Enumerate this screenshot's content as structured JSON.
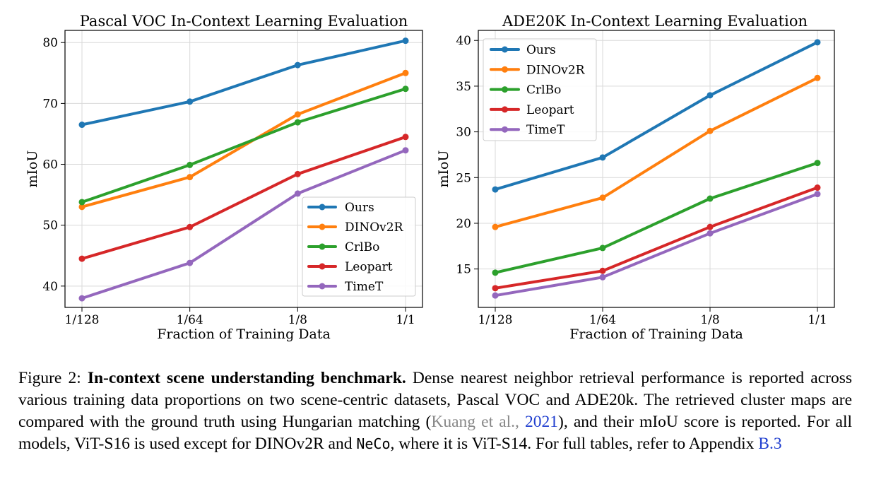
{
  "chart_data": [
    {
      "type": "line",
      "title": "Pascal VOC In-Context Learning Evaluation",
      "xlabel": "Fraction of Training Data",
      "ylabel": "mIoU",
      "categories": [
        "1/128",
        "1/64",
        "1/8",
        "1/1"
      ],
      "yticks": [
        40,
        50,
        60,
        70,
        80
      ],
      "ylim": [
        36.5,
        82
      ],
      "grid": true,
      "legend_position": "lower-right",
      "series": [
        {
          "name": "Ours",
          "color": "#1f77b4",
          "values": [
            66.5,
            70.3,
            76.3,
            80.3
          ]
        },
        {
          "name": "DINOv2R",
          "color": "#ff7f0e",
          "values": [
            53.0,
            57.9,
            68.2,
            75.0
          ]
        },
        {
          "name": "CrlBo",
          "color": "#2ca02c",
          "values": [
            53.8,
            59.9,
            66.9,
            72.4
          ]
        },
        {
          "name": "Leopart",
          "color": "#d62728",
          "values": [
            44.5,
            49.7,
            58.4,
            64.5
          ]
        },
        {
          "name": "TimeT",
          "color": "#9467bd",
          "values": [
            38.0,
            43.8,
            55.2,
            62.3
          ]
        }
      ]
    },
    {
      "type": "line",
      "title": "ADE20K In-Context Learning Evaluation",
      "xlabel": "Fraction of Training Data",
      "ylabel": "mIoU",
      "categories": [
        "1/128",
        "1/64",
        "1/8",
        "1/1"
      ],
      "yticks": [
        15,
        20,
        25,
        30,
        35,
        40
      ],
      "ylim": [
        10.8,
        41.1
      ],
      "grid": true,
      "legend_position": "upper-left",
      "series": [
        {
          "name": "Ours",
          "color": "#1f77b4",
          "values": [
            23.7,
            27.2,
            34.0,
            39.8
          ]
        },
        {
          "name": "DINOv2R",
          "color": "#ff7f0e",
          "values": [
            19.6,
            22.8,
            30.1,
            35.9
          ]
        },
        {
          "name": "CrlBo",
          "color": "#2ca02c",
          "values": [
            14.6,
            17.3,
            22.7,
            26.6
          ]
        },
        {
          "name": "Leopart",
          "color": "#d62728",
          "values": [
            12.9,
            14.8,
            19.6,
            23.9
          ]
        },
        {
          "name": "TimeT",
          "color": "#9467bd",
          "values": [
            12.1,
            14.1,
            18.9,
            23.2
          ]
        }
      ]
    }
  ],
  "caption": {
    "label": "Figure 2:",
    "bold": "In-context scene understanding benchmark.",
    "text1": "Dense nearest neighbor retrieval performance is reported across various training data proportions on two scene-centric datasets, Pascal VOC and ADE20k. The retrieved cluster maps are compared with the ground truth using Hungarian matching (",
    "cite_authors": "Kuang et al.",
    "cite_sep": ", ",
    "cite_year": "2021",
    "text2": "), and their mIoU score is reported. For all models, ViT-S16 is used except for DINOv2R and ",
    "mono": "NeCo",
    "text3": ", where it is ViT-S14. For full tables, refer to Appendix ",
    "appendix": "B.3"
  }
}
